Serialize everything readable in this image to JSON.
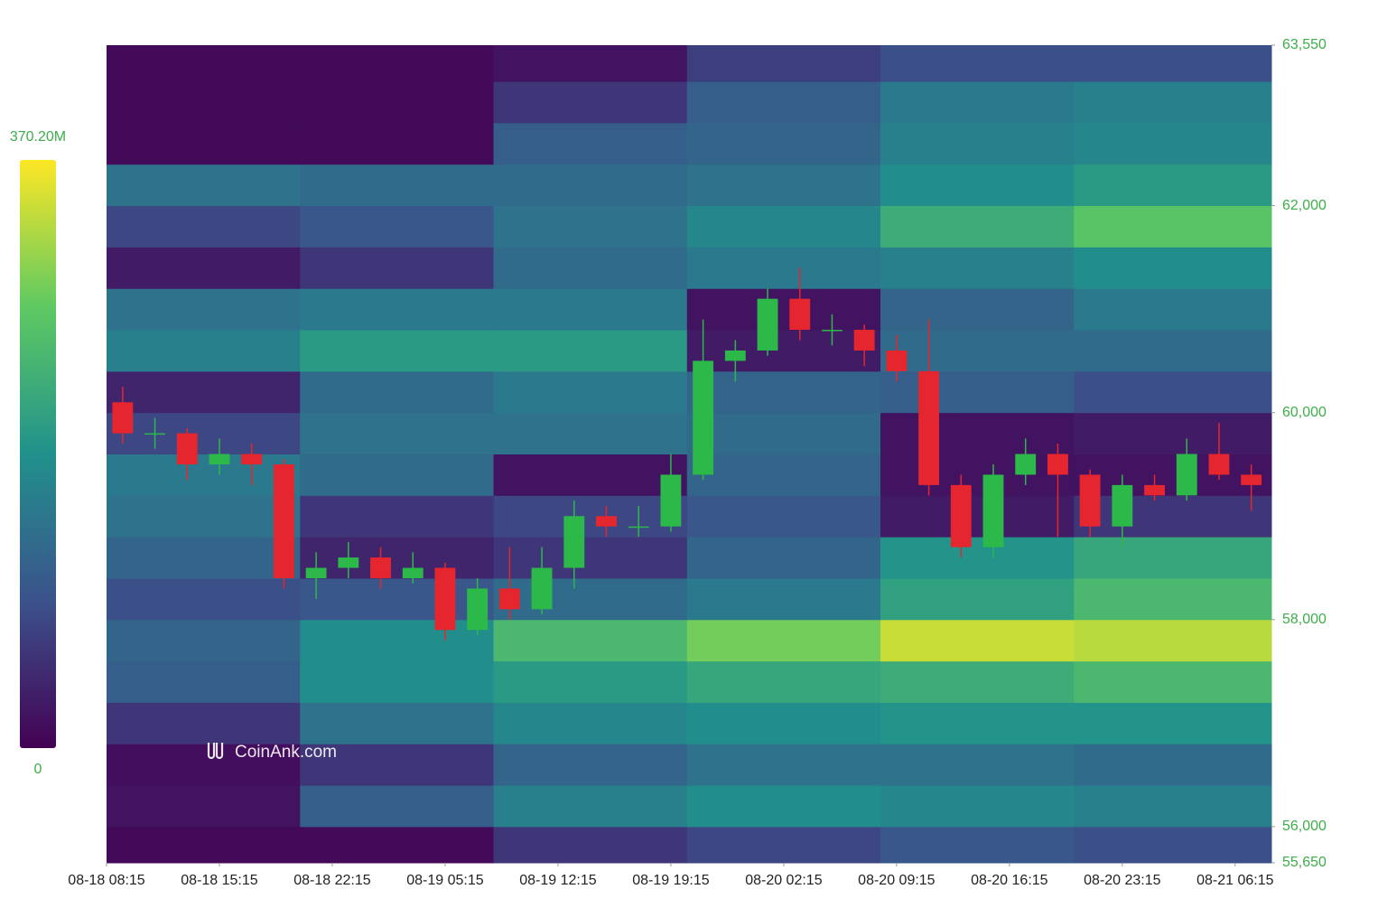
{
  "chart_data": {
    "type": "liquidation-heatmap",
    "watermark": "CoinAnk.com",
    "xlim": [
      "08-18 08:15",
      "08-21 08:30"
    ],
    "ylim": [
      55650,
      63550
    ],
    "xticks": [
      "08-18 08:15",
      "08-18 15:15",
      "08-18 22:15",
      "08-19 05:15",
      "08-19 12:15",
      "08-19 19:15",
      "08-20 02:15",
      "08-20 09:15",
      "08-20 16:15",
      "08-20 23:15",
      "08-21 06:15"
    ],
    "yticks": [
      {
        "value": 63550,
        "label": "63,550"
      },
      {
        "value": 62000,
        "label": "62,000"
      },
      {
        "value": 60000,
        "label": "60,000"
      },
      {
        "value": 58000,
        "label": "58,000"
      },
      {
        "value": 56000,
        "label": "56,000"
      },
      {
        "value": 55650,
        "label": "55,650"
      }
    ],
    "colorbar": {
      "ticks": [
        {
          "value": 370.2,
          "label": "370.20M"
        },
        0
      ],
      "colors": [
        "#440154",
        "#3b528b",
        "#21918c",
        "#5ec962",
        "#fde725"
      ]
    },
    "heatmap": {
      "x_bins": [
        "08-18 08:15",
        "08-18 20:15",
        "08-19 08:15",
        "08-19 20:15",
        "08-20 08:15",
        "08-20 20:15",
        "08-21 08:30"
      ],
      "price_bins": [
        55650,
        56000,
        56400,
        56800,
        57200,
        57600,
        58000,
        58400,
        58800,
        59200,
        59600,
        60000,
        60400,
        60800,
        61200,
        61600,
        62000,
        62400,
        62800,
        63200,
        63550
      ],
      "z": [
        [
          10,
          10,
          60,
          80,
          100,
          90
        ],
        [
          20,
          110,
          160,
          180,
          170,
          160
        ],
        [
          15,
          60,
          120,
          140,
          140,
          130
        ],
        [
          60,
          140,
          170,
          180,
          190,
          190
        ],
        [
          110,
          180,
          200,
          220,
          230,
          250
        ],
        [
          120,
          180,
          250,
          290,
          340,
          330
        ],
        [
          90,
          100,
          130,
          150,
          210,
          250
        ],
        [
          120,
          40,
          60,
          120,
          190,
          220
        ],
        [
          140,
          60,
          80,
          100,
          30,
          60
        ],
        [
          150,
          130,
          20,
          120,
          20,
          20
        ],
        [
          80,
          140,
          140,
          130,
          20,
          30
        ],
        [
          40,
          130,
          150,
          120,
          110,
          90
        ],
        [
          160,
          200,
          200,
          30,
          130,
          130
        ],
        [
          140,
          150,
          150,
          20,
          120,
          150
        ],
        [
          30,
          60,
          130,
          150,
          160,
          180
        ],
        [
          80,
          100,
          140,
          170,
          230,
          270
        ],
        [
          140,
          130,
          130,
          140,
          180,
          200
        ],
        [
          10,
          10,
          110,
          120,
          160,
          170
        ],
        [
          10,
          10,
          60,
          110,
          150,
          160
        ],
        [
          10,
          10,
          20,
          70,
          90,
          90
        ]
      ]
    },
    "candles": {
      "up_color": "#2db84a",
      "down_color": "#e5262f",
      "x": [
        "08-18 08:15",
        "08-18 10:15",
        "08-18 12:15",
        "08-18 14:15",
        "08-18 16:15",
        "08-18 18:15",
        "08-18 20:15",
        "08-18 22:15",
        "08-19 00:15",
        "08-19 02:15",
        "08-19 04:15",
        "08-19 06:15",
        "08-19 08:15",
        "08-19 10:15",
        "08-19 12:15",
        "08-19 14:15",
        "08-19 16:15",
        "08-19 18:15",
        "08-19 20:15",
        "08-19 22:15",
        "08-20 00:15",
        "08-20 02:15",
        "08-20 04:15",
        "08-20 06:15",
        "08-20 08:15",
        "08-20 10:15",
        "08-20 12:15",
        "08-20 14:15",
        "08-20 16:15",
        "08-20 18:15",
        "08-20 20:15",
        "08-20 22:15",
        "08-21 00:15",
        "08-21 02:15",
        "08-21 04:15",
        "08-21 06:15"
      ],
      "open": [
        60100,
        59800,
        59800,
        59500,
        59600,
        59500,
        58400,
        58500,
        58600,
        58400,
        58500,
        57900,
        58300,
        58100,
        58500,
        59000,
        58900,
        58900,
        59400,
        60500,
        60600,
        61100,
        60800,
        60800,
        60600,
        60400,
        59300,
        58700,
        59400,
        59600,
        59400,
        58900,
        59300,
        59200,
        59600,
        59400
      ],
      "high": [
        60250,
        59950,
        59850,
        59750,
        59700,
        59550,
        58650,
        58750,
        58700,
        58650,
        58550,
        58400,
        58700,
        58700,
        59150,
        59100,
        59100,
        59600,
        60900,
        60700,
        61200,
        61400,
        60950,
        60850,
        60750,
        60900,
        59400,
        59500,
        59750,
        59700,
        59450,
        59400,
        59400,
        59750,
        59900,
        59500
      ],
      "low": [
        59700,
        59650,
        59350,
        59400,
        59300,
        58300,
        58200,
        58400,
        58300,
        58350,
        57800,
        57850,
        58000,
        58050,
        58300,
        58800,
        58800,
        58850,
        59350,
        60300,
        60550,
        60700,
        60650,
        60450,
        60300,
        59200,
        58600,
        58600,
        59300,
        58800,
        58800,
        58700,
        59150,
        59150,
        59350,
        59050
      ],
      "close": [
        59800,
        59800,
        59500,
        59600,
        59500,
        58400,
        58500,
        58600,
        58400,
        58500,
        57900,
        58300,
        58100,
        58500,
        59000,
        58900,
        58900,
        59400,
        60500,
        60600,
        61100,
        60800,
        60800,
        60600,
        60400,
        59300,
        58700,
        59400,
        59600,
        59400,
        58900,
        59300,
        59200,
        59600,
        59400,
        59300
      ]
    }
  }
}
